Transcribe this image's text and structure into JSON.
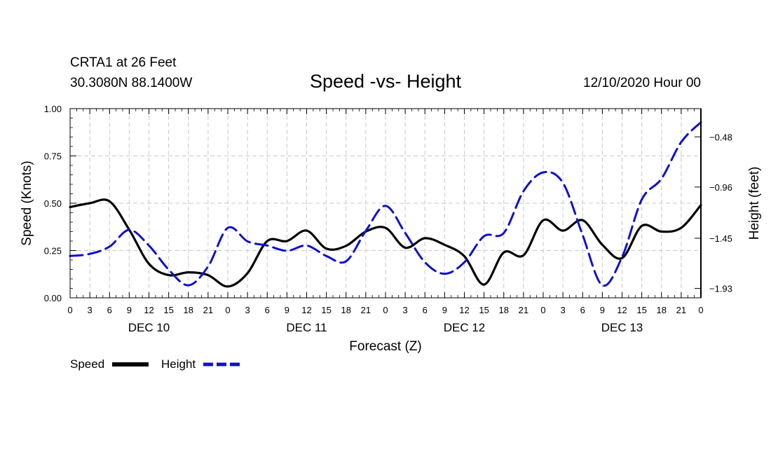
{
  "header": {
    "station": "CRTA1 at 26 Feet",
    "coords": "30.3080N 88.1400W",
    "issued": "12/10/2020 Hour 00"
  },
  "chart_data": {
    "type": "line",
    "title": "Speed -vs- Height",
    "xlabel": "Forecast (Z)",
    "ylabel_left": "Speed (Knots)",
    "ylabel_right": "Height (feet)",
    "x_range_hours": [
      0,
      96
    ],
    "x_tick_hours": [
      0,
      3,
      6,
      9,
      12,
      15,
      18,
      21,
      24,
      27,
      30,
      33,
      36,
      39,
      42,
      45,
      48,
      51,
      54,
      57,
      60,
      63,
      66,
      69,
      72,
      75,
      78,
      81,
      84,
      87,
      90,
      93,
      96
    ],
    "x_tick_labels": [
      "0",
      "3",
      "6",
      "9",
      "12",
      "15",
      "18",
      "21",
      "0",
      "3",
      "6",
      "9",
      "12",
      "15",
      "18",
      "21",
      "0",
      "3",
      "6",
      "9",
      "12",
      "15",
      "18",
      "21",
      "0",
      "3",
      "6",
      "9",
      "12",
      "15",
      "18",
      "21",
      "0"
    ],
    "date_labels": [
      {
        "text": "DEC 10",
        "hour": 12
      },
      {
        "text": "DEC 11",
        "hour": 36
      },
      {
        "text": "DEC 12",
        "hour": 60
      },
      {
        "text": "DEC 13",
        "hour": 84
      }
    ],
    "y_left": {
      "range": [
        0,
        1
      ],
      "ticks": [
        0,
        0.25,
        0.5,
        0.75,
        1.0
      ],
      "tick_labels": [
        "0.00",
        "0.25",
        "0.50",
        "0.75",
        "1.00"
      ]
    },
    "y_right": {
      "range": [
        -2.02,
        -0.21
      ],
      "ticks": [
        -1.93,
        -1.45,
        -0.96,
        -0.48
      ],
      "tick_labels": [
        "−1.93",
        "−1.45",
        "−0.96",
        "−0.48"
      ]
    },
    "grid": true,
    "legend_position": "bottom-left",
    "series": [
      {
        "name": "Speed",
        "axis": "left",
        "color": "#000000",
        "style": "solid",
        "points": [
          [
            0,
            0.48
          ],
          [
            3,
            0.5
          ],
          [
            6,
            0.51
          ],
          [
            9,
            0.36
          ],
          [
            12,
            0.18
          ],
          [
            15,
            0.12
          ],
          [
            18,
            0.135
          ],
          [
            21,
            0.12
          ],
          [
            24,
            0.06
          ],
          [
            27,
            0.13
          ],
          [
            30,
            0.3
          ],
          [
            33,
            0.3
          ],
          [
            36,
            0.355
          ],
          [
            39,
            0.26
          ],
          [
            42,
            0.275
          ],
          [
            45,
            0.35
          ],
          [
            48,
            0.37
          ],
          [
            51,
            0.265
          ],
          [
            54,
            0.315
          ],
          [
            57,
            0.28
          ],
          [
            60,
            0.22
          ],
          [
            63,
            0.07
          ],
          [
            66,
            0.24
          ],
          [
            69,
            0.225
          ],
          [
            72,
            0.41
          ],
          [
            75,
            0.355
          ],
          [
            78,
            0.41
          ],
          [
            81,
            0.28
          ],
          [
            84,
            0.21
          ],
          [
            87,
            0.38
          ],
          [
            90,
            0.35
          ],
          [
            93,
            0.37
          ],
          [
            96,
            0.49
          ]
        ]
      },
      {
        "name": "Height",
        "axis": "right",
        "color": "#1010cc",
        "style": "dashed",
        "points": [
          [
            0,
            -1.62
          ],
          [
            3,
            -1.6
          ],
          [
            6,
            -1.53
          ],
          [
            9,
            -1.37
          ],
          [
            12,
            -1.52
          ],
          [
            15,
            -1.75
          ],
          [
            18,
            -1.9
          ],
          [
            21,
            -1.72
          ],
          [
            24,
            -1.35
          ],
          [
            27,
            -1.48
          ],
          [
            30,
            -1.52
          ],
          [
            33,
            -1.57
          ],
          [
            36,
            -1.52
          ],
          [
            39,
            -1.62
          ],
          [
            42,
            -1.67
          ],
          [
            45,
            -1.38
          ],
          [
            48,
            -1.14
          ],
          [
            51,
            -1.4
          ],
          [
            54,
            -1.68
          ],
          [
            57,
            -1.79
          ],
          [
            60,
            -1.68
          ],
          [
            63,
            -1.43
          ],
          [
            66,
            -1.4
          ],
          [
            69,
            -1.0
          ],
          [
            72,
            -0.82
          ],
          [
            75,
            -0.92
          ],
          [
            78,
            -1.42
          ],
          [
            81,
            -1.9
          ],
          [
            84,
            -1.63
          ],
          [
            87,
            -1.08
          ],
          [
            90,
            -0.88
          ],
          [
            93,
            -0.53
          ],
          [
            96,
            -0.34
          ]
        ]
      }
    ]
  }
}
